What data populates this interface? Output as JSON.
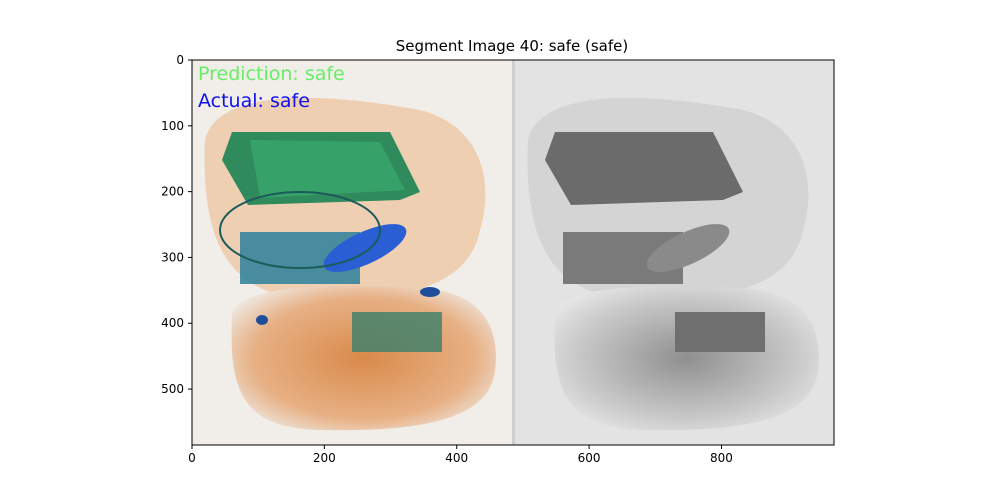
{
  "figure": {
    "title": "Segment Image 40: safe (safe)"
  },
  "image": {
    "overlay_prediction": "Prediction: safe",
    "overlay_actual": "Actual: safe",
    "overlay_prediction_color": "#66ee66",
    "overlay_actual_color": "#1010ee",
    "xlim": [
      0,
      970
    ],
    "ylim": [
      585,
      0
    ],
    "x_ticks": [
      "0",
      "200",
      "400",
      "600",
      "800"
    ],
    "y_ticks": [
      "0",
      "100",
      "200",
      "300",
      "400",
      "500"
    ]
  }
}
